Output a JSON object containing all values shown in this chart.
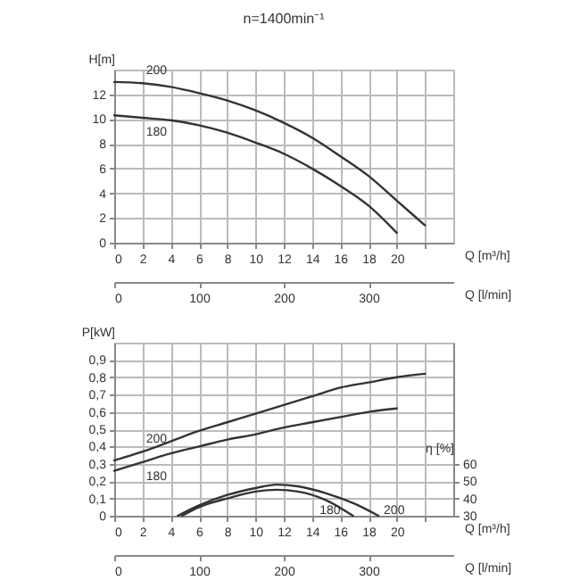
{
  "chart_data": [
    {
      "type": "line",
      "title": "n=1400min⁻¹",
      "xlabel": "Q [m³/h]",
      "x2label": "Q [l/min]",
      "ylabel": "H[m]",
      "xlim": [
        0,
        24
      ],
      "xticks": [
        0,
        2,
        4,
        6,
        8,
        10,
        12,
        14,
        16,
        18,
        20,
        {
          "value": 22,
          "label": null
        }
      ],
      "x2lim": [
        0,
        400
      ],
      "x2ticks": [
        0,
        100,
        200,
        300
      ],
      "ylim": [
        0,
        14
      ],
      "yticks": [
        0,
        2,
        4,
        6,
        8,
        10,
        12
      ],
      "grid": true,
      "series": [
        {
          "name": "200",
          "color": "#333333",
          "x": [
            0,
            2,
            4,
            6,
            8,
            10,
            12,
            14,
            16,
            18,
            20,
            22
          ],
          "values": [
            13.0,
            12.9,
            12.6,
            12.1,
            11.5,
            10.7,
            9.7,
            8.5,
            7.0,
            5.4,
            3.4,
            1.4
          ]
        },
        {
          "name": "180",
          "color": "#333333",
          "x": [
            0,
            2,
            4,
            6,
            8,
            10,
            12,
            14,
            16,
            18,
            20
          ],
          "values": [
            10.3,
            10.1,
            9.9,
            9.5,
            8.9,
            8.1,
            7.2,
            6.0,
            4.6,
            3.0,
            0.8
          ]
        }
      ]
    },
    {
      "type": "line",
      "xlabel": "Q [m³/h]",
      "x2label": "Q [l/min]",
      "ylabel": "P[kW]",
      "y2label": "η [%]",
      "xlim": [
        0,
        24
      ],
      "xticks": [
        0,
        2,
        4,
        6,
        8,
        10,
        12,
        14,
        16,
        18,
        20,
        {
          "value": 22,
          "label": null
        }
      ],
      "x2lim": [
        0,
        400
      ],
      "x2ticks": [
        0,
        100,
        200,
        300
      ],
      "ylim": [
        0,
        1
      ],
      "yticks": [
        0,
        {
          "value": 0.1,
          "label": "0,1"
        },
        {
          "value": 0.2,
          "label": "0,2"
        },
        {
          "value": 0.3,
          "label": "0,3"
        },
        {
          "value": 0.4,
          "label": "0,4"
        },
        {
          "value": 0.5,
          "label": "0,5"
        },
        {
          "value": 0.6,
          "label": "0,6"
        },
        {
          "value": 0.7,
          "label": "0,7"
        },
        {
          "value": 0.8,
          "label": "0,8"
        },
        {
          "value": 0.9,
          "label": "0,9"
        }
      ],
      "y2lim": [
        30,
        130
      ],
      "y2ticks": [
        30,
        40,
        50,
        60
      ],
      "grid": true,
      "series": [
        {
          "name": "200",
          "color": "#333333",
          "x": [
            0,
            2,
            4,
            6,
            8,
            10,
            12,
            14,
            16,
            18,
            20,
            22
          ],
          "values": [
            0.32,
            0.37,
            0.43,
            0.49,
            0.54,
            0.59,
            0.64,
            0.69,
            0.74,
            0.77,
            0.8,
            0.82
          ]
        },
        {
          "name": "180",
          "color": "#333333",
          "x": [
            0,
            2,
            4,
            6,
            8,
            10,
            12,
            14,
            16,
            18,
            20
          ],
          "values": [
            0.26,
            0.31,
            0.36,
            0.4,
            0.44,
            0.47,
            0.51,
            0.54,
            0.57,
            0.6,
            0.62
          ]
        },
        {
          "name": "180",
          "color": "#333333",
          "axis": "y2",
          "x": [
            4.8,
            6,
            8,
            10,
            11.5,
            13,
            15,
            16.9
          ],
          "values": [
            30,
            35,
            40,
            44,
            45,
            44,
            39,
            30
          ]
        },
        {
          "name": "200",
          "color": "#333333",
          "axis": "y2",
          "x": [
            4.5,
            6,
            8,
            10,
            11.5,
            13,
            15,
            17,
            18.7
          ],
          "values": [
            30,
            36,
            42,
            46,
            48,
            47,
            43,
            37,
            30
          ]
        }
      ]
    }
  ]
}
